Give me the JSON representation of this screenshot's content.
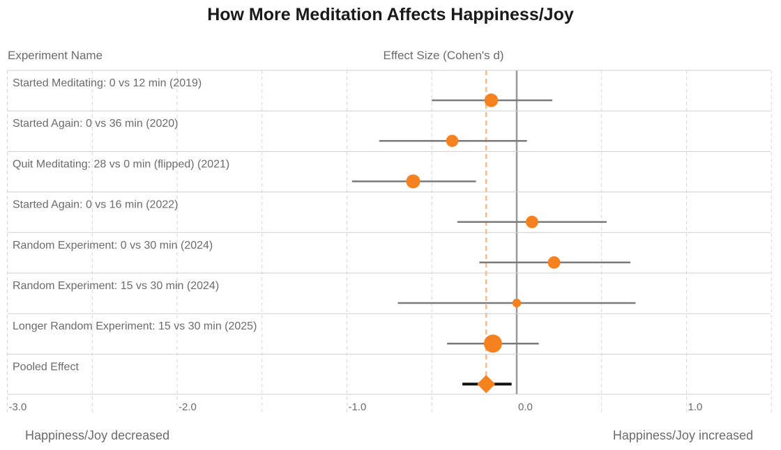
{
  "chart_data": {
    "type": "forest",
    "title": "How More Meditation Affects Happiness/Joy",
    "column_header": "Experiment Name",
    "xlabel": "Effect Size (Cohen's d)",
    "xlim": [
      -3.0,
      1.5
    ],
    "xticks": [
      -3.0,
      -2.0,
      -1.0,
      0.0,
      1.0
    ],
    "xtick_labels": [
      "-3.0",
      "-2.0",
      "-1.0",
      "0.0",
      "1.0"
    ],
    "left_direction_label": "Happiness/Joy decreased",
    "right_direction_label": "Happiness/Joy increased",
    "reference_line": 0.0,
    "pooled_line": -0.18,
    "studies": [
      {
        "name": "Started Meditating: 0 vs 12 min (2019)",
        "effect": -0.15,
        "ci_low": -0.5,
        "ci_high": 0.21,
        "weight": 0.62
      },
      {
        "name": "Started Again: 0 vs 36 min (2020)",
        "effect": -0.38,
        "ci_low": -0.81,
        "ci_high": 0.06,
        "weight": 0.5
      },
      {
        "name": "Quit Meditating: 28 vs 0 min (flipped) (2021)",
        "effect": -0.61,
        "ci_low": -0.97,
        "ci_high": -0.24,
        "weight": 0.65
      },
      {
        "name": "Started Again: 0 vs 16 min (2022)",
        "effect": 0.09,
        "ci_low": -0.35,
        "ci_high": 0.53,
        "weight": 0.52
      },
      {
        "name": "Random Experiment: 0 vs 30 min (2024)",
        "effect": 0.22,
        "ci_low": -0.22,
        "ci_high": 0.67,
        "weight": 0.52
      },
      {
        "name": "Random Experiment: 15 vs 30 min (2024)",
        "effect": 0.0,
        "ci_low": -0.7,
        "ci_high": 0.7,
        "weight": 0.2
      },
      {
        "name": "Longer Random Experiment: 15 vs 30 min (2025)",
        "effect": -0.14,
        "ci_low": -0.41,
        "ci_high": 0.13,
        "weight": 1.0
      }
    ],
    "pooled": {
      "name": "Pooled Effect",
      "effect": -0.18,
      "ci_low": -0.32,
      "ci_high": -0.03
    },
    "grid": true,
    "colors": {
      "point": "#f5821f",
      "ci_line": "#7a7a7a",
      "pooled_ci": "#111111",
      "pooled_line": "#f5b98a",
      "zero_line": "#999999",
      "grid": "#d7d7d7",
      "row_separator": "#cfcfcf"
    }
  }
}
